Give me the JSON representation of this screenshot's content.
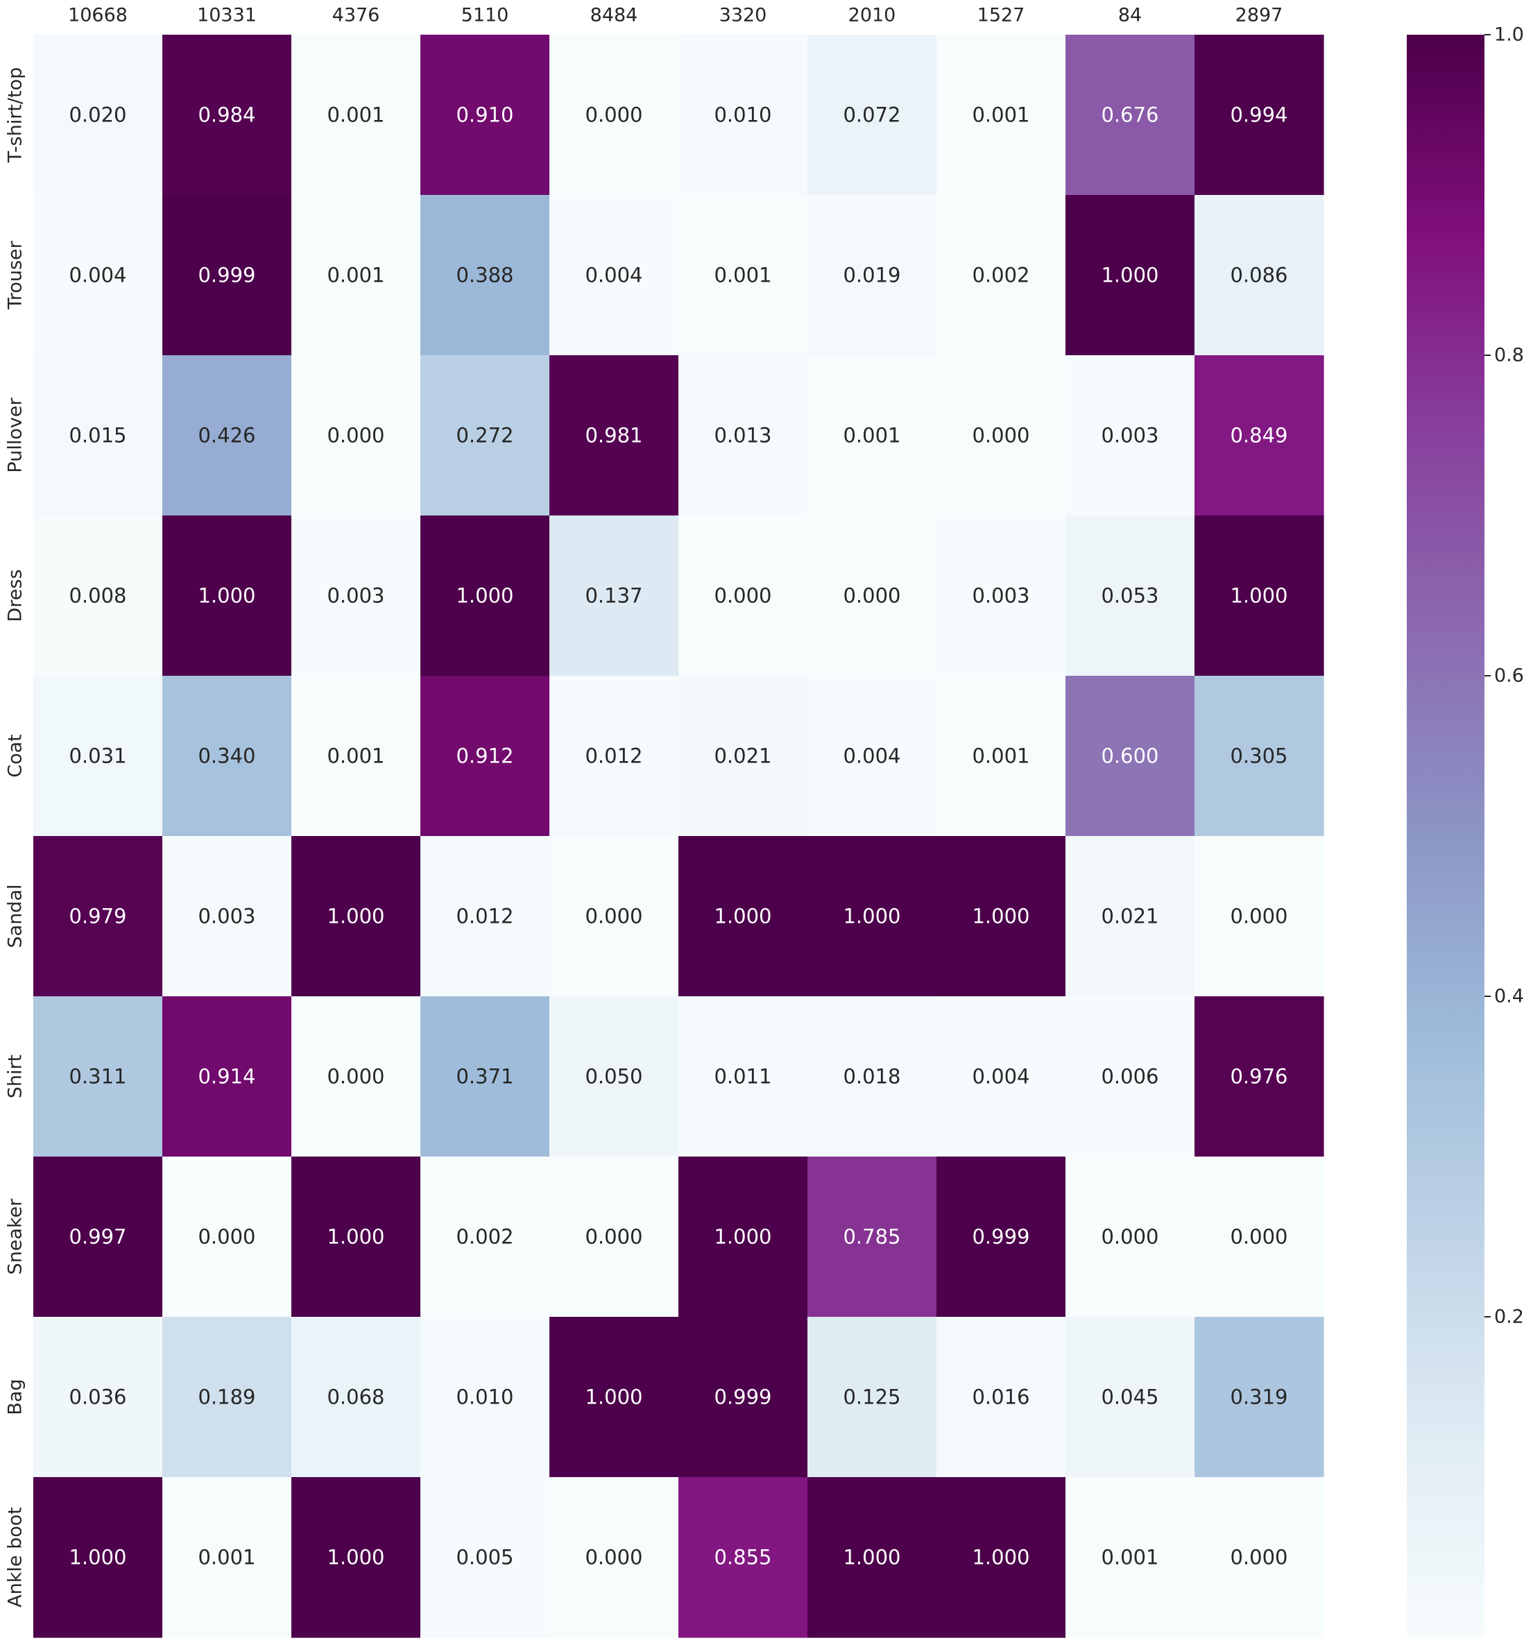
{
  "chart_data": {
    "type": "heatmap",
    "title": "",
    "xlabel": "",
    "ylabel": "",
    "x_categories": [
      "10668",
      "10331",
      "4376",
      "5110",
      "8484",
      "3320",
      "2010",
      "1527",
      "84",
      "2897"
    ],
    "y_categories": [
      "T-shirt/top",
      "Trouser",
      "Pullover",
      "Dress",
      "Coat",
      "Sandal",
      "Shirt",
      "Sneaker",
      "Bag",
      "Ankle boot"
    ],
    "values": [
      [
        0.02,
        0.984,
        0.001,
        0.91,
        0.0,
        0.01,
        0.072,
        0.001,
        0.676,
        0.994
      ],
      [
        0.004,
        0.999,
        0.001,
        0.388,
        0.004,
        0.001,
        0.019,
        0.002,
        1.0,
        0.086
      ],
      [
        0.015,
        0.426,
        0.0,
        0.272,
        0.981,
        0.013,
        0.001,
        0.0,
        0.003,
        0.849
      ],
      [
        0.008,
        1.0,
        0.003,
        1.0,
        0.137,
        0.0,
        0.0,
        0.003,
        0.053,
        1.0
      ],
      [
        0.031,
        0.34,
        0.001,
        0.912,
        0.012,
        0.021,
        0.004,
        0.001,
        0.6,
        0.305
      ],
      [
        0.979,
        0.003,
        1.0,
        0.012,
        0.0,
        1.0,
        1.0,
        1.0,
        0.021,
        0.0
      ],
      [
        0.311,
        0.914,
        0.0,
        0.371,
        0.05,
        0.011,
        0.018,
        0.004,
        0.006,
        0.976
      ],
      [
        0.997,
        0.0,
        1.0,
        0.002,
        0.0,
        1.0,
        0.785,
        0.999,
        0.0,
        0.0
      ],
      [
        0.036,
        0.189,
        0.068,
        0.01,
        1.0,
        0.999,
        0.125,
        0.016,
        0.045,
        0.319
      ],
      [
        1.0,
        0.001,
        1.0,
        0.005,
        0.0,
        0.855,
        1.0,
        1.0,
        0.001,
        0.0
      ]
    ],
    "value_format": "0.000",
    "colormap": "BuPu",
    "colorbar": {
      "range": [
        0,
        1
      ],
      "ticks": [
        0.2,
        0.4,
        0.6,
        0.8,
        1.0
      ],
      "tick_labels": [
        "0.2",
        "0.4",
        "0.6",
        "0.8",
        "1.0"
      ]
    },
    "x_tick_position": "top",
    "grid": false,
    "legend": "colorbar-right"
  }
}
